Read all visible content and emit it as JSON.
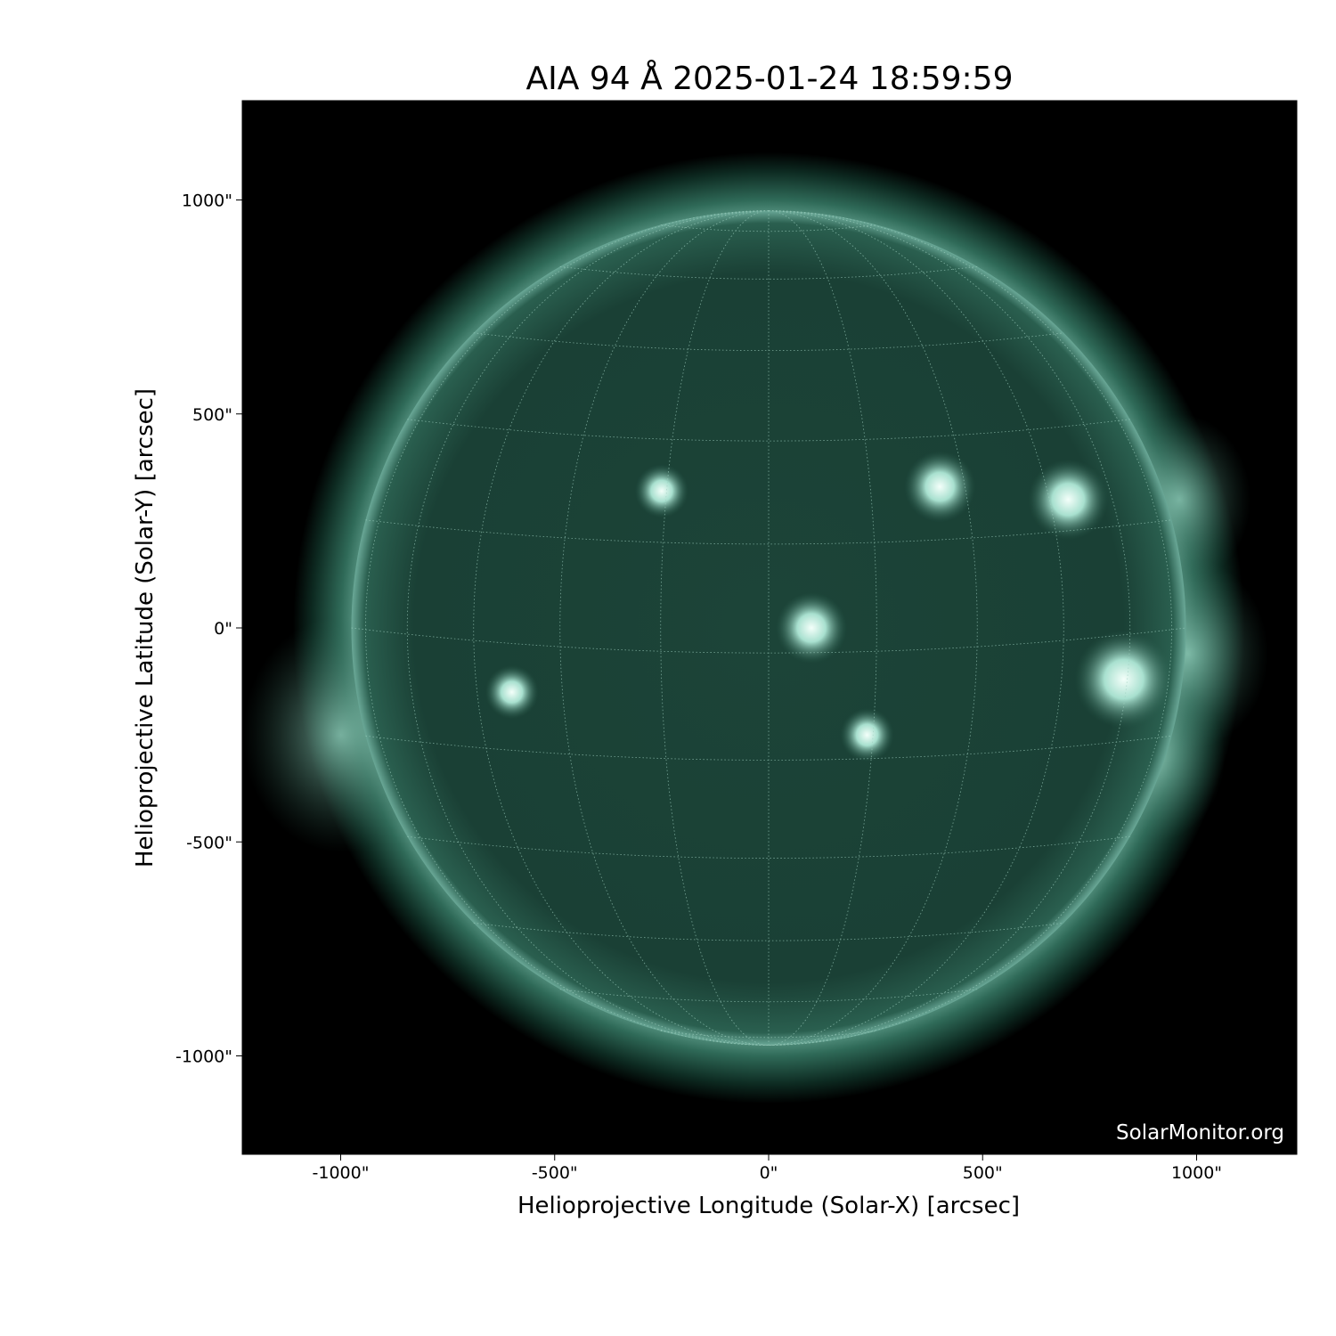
{
  "chart_data": {
    "type": "image",
    "title": "AIA 94 Å 2025-01-24 18:59:59",
    "xlabel": "Helioprojective Longitude (Solar-X) [arcsec]",
    "ylabel": "Helioprojective Latitude (Solar-Y) [arcsec]",
    "xticks": [
      -1000,
      -500,
      0,
      500,
      1000
    ],
    "yticks": [
      1000,
      500,
      0,
      -500,
      -1000
    ],
    "xtick_labels": [
      "-1000\"",
      "-500\"",
      "0\"",
      "500\"",
      "1000\""
    ],
    "ytick_labels": [
      "1000\"",
      "500\"",
      "0\"",
      "-500\"",
      "-1000\""
    ],
    "xlim": [
      -1230,
      1230
    ],
    "ylim": [
      -1230,
      1230
    ],
    "solar_radius_arcsec": 975,
    "grid": true,
    "colormap": "sdoaia94",
    "colors": {
      "background": "#000000",
      "disk": "#1e4a3c",
      "bright": "#e8fff6"
    },
    "watermark": "SolarMonitor.org"
  }
}
